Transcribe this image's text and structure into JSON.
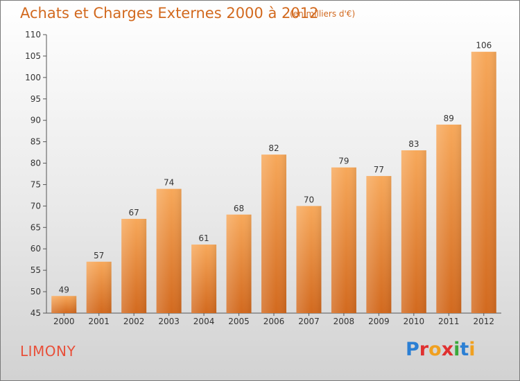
{
  "header": {
    "title": "Achats et Charges Externes 2000 à 2012",
    "subtitle": "(en milliers d'€)"
  },
  "footer": {
    "commune": "LIMONY",
    "brand": "Proxiti",
    "brand_colors": [
      "#2b7fd4",
      "#e03030",
      "#f0a020",
      "#e03030",
      "#3aa83a",
      "#2b7fd4",
      "#f0a020"
    ]
  },
  "colors": {
    "bar_light": "#f7a85a",
    "bar_dark": "#d2691e",
    "text": "#333333",
    "grid": "#999999"
  },
  "chart_data": {
    "type": "bar",
    "categories": [
      "2000",
      "2001",
      "2002",
      "2003",
      "2004",
      "2005",
      "2006",
      "2007",
      "2008",
      "2009",
      "2010",
      "2011",
      "2012"
    ],
    "values": [
      49,
      57,
      67,
      74,
      61,
      68,
      82,
      70,
      79,
      77,
      83,
      89,
      106
    ],
    "title": "Achats et Charges Externes 2000 à 2012",
    "ylim": [
      45,
      110
    ],
    "yticks": [
      45,
      50,
      55,
      60,
      65,
      70,
      75,
      80,
      85,
      90,
      95,
      100,
      105,
      110
    ],
    "grid": false
  }
}
